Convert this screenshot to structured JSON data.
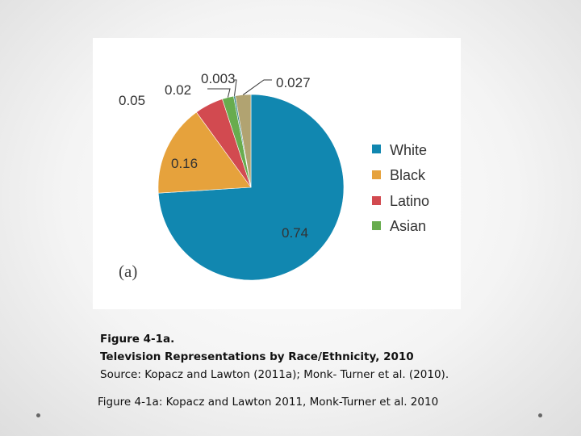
{
  "chart_data": {
    "type": "pie",
    "panel_label": "(a)",
    "slices": [
      {
        "label": "White",
        "value": 0.74,
        "value_label": "0.74",
        "color": "#1187b0"
      },
      {
        "label": "Black",
        "value": 0.16,
        "value_label": "0.16",
        "color": "#e6a23c"
      },
      {
        "label": "Latino",
        "value": 0.05,
        "value_label": "0.05",
        "color": "#d24a50"
      },
      {
        "label": "Asian",
        "value": 0.02,
        "value_label": "0.02",
        "color": "#68ac4e"
      },
      {
        "label": "",
        "value": 0.003,
        "value_label": "0.003",
        "color": "#3b8a8a"
      },
      {
        "label": "",
        "value": 0.027,
        "value_label": "0.027",
        "color": "#b1a371"
      }
    ],
    "legend": [
      "White",
      "Black",
      "Latino",
      "Asian"
    ],
    "legend_position": "right"
  },
  "caption": {
    "line1": "Figure 4-1a.",
    "line2": "Television Representations by Race/Ethnicity, 2010",
    "line3": "Source: Kopacz and Lawton (2011a); Monk- Turner et al. (2010)."
  },
  "footnote": "Figure 4-1a: Kopacz and Lawton 2011, Monk-Turner et al. 2010"
}
